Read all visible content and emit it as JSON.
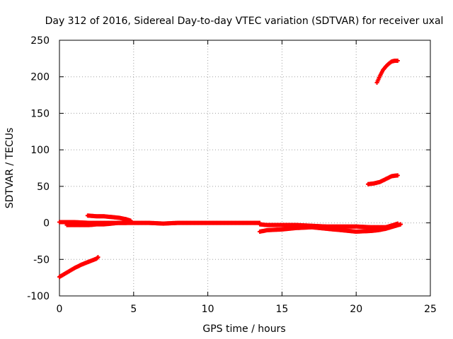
{
  "chart_data": {
    "type": "scatter",
    "title": "Day 312 of 2016, Sidereal Day-to-day VTEC variation (SDTVAR) for receiver uxal",
    "xlabel": "GPS time / hours",
    "ylabel": "SDTVAR / TECUs",
    "xlim": [
      0,
      25
    ],
    "ylim": [
      -100,
      250
    ],
    "xticks": [
      0,
      5,
      10,
      15,
      20,
      25
    ],
    "yticks": [
      -100,
      -50,
      0,
      50,
      100,
      150,
      200,
      250
    ],
    "grid": true,
    "marker": "plus",
    "color": "#ff0000",
    "series": [
      {
        "x": [
          0,
          0.5,
          1.0,
          1.5,
          2.0,
          2.5,
          2.6
        ],
        "y": [
          -74,
          -68,
          -62,
          -57,
          -53,
          -49,
          -47
        ]
      },
      {
        "x": [
          0,
          1,
          2,
          3,
          4,
          5,
          6,
          7,
          8,
          9,
          10,
          11,
          12,
          13,
          13.5
        ],
        "y": [
          1,
          1,
          0,
          0,
          0,
          0,
          0,
          -1,
          0,
          0,
          0,
          0,
          0,
          0,
          0
        ]
      },
      {
        "x": [
          0.5,
          1.0,
          1.5,
          2.0,
          2.5,
          3.0,
          3.5,
          4.0,
          4.5
        ],
        "y": [
          -3,
          -3,
          -3,
          -3,
          -2,
          -2,
          -1,
          0,
          0
        ]
      },
      {
        "x": [
          1.9,
          2.5,
          3.0,
          3.5,
          4.0,
          4.5,
          4.8
        ],
        "y": [
          10,
          9,
          9,
          8,
          7,
          5,
          3
        ]
      },
      {
        "x": [
          13.5,
          14,
          15,
          16,
          17,
          18,
          19,
          20,
          21,
          22,
          22.5,
          22.8
        ],
        "y": [
          -2,
          -3,
          -3,
          -3,
          -4,
          -5,
          -5,
          -5,
          -6,
          -6,
          -3,
          -1
        ]
      },
      {
        "x": [
          13.5,
          14,
          15,
          16,
          17,
          18,
          19,
          20,
          21,
          21.5,
          22,
          22.5,
          23
        ],
        "y": [
          -12,
          -10,
          -9,
          -7,
          -6,
          -8,
          -10,
          -12,
          -11,
          -10,
          -8,
          -5,
          -2
        ]
      },
      {
        "x": [
          20.8,
          21.2,
          21.6,
          22.0,
          22.4,
          22.8
        ],
        "y": [
          53,
          54,
          56,
          60,
          64,
          65
        ]
      },
      {
        "x": [
          21.4,
          21.6,
          21.8,
          22.0,
          22.2,
          22.4,
          22.6,
          22.8
        ],
        "y": [
          192,
          201,
          209,
          214,
          218,
          221,
          222,
          222
        ]
      }
    ]
  }
}
